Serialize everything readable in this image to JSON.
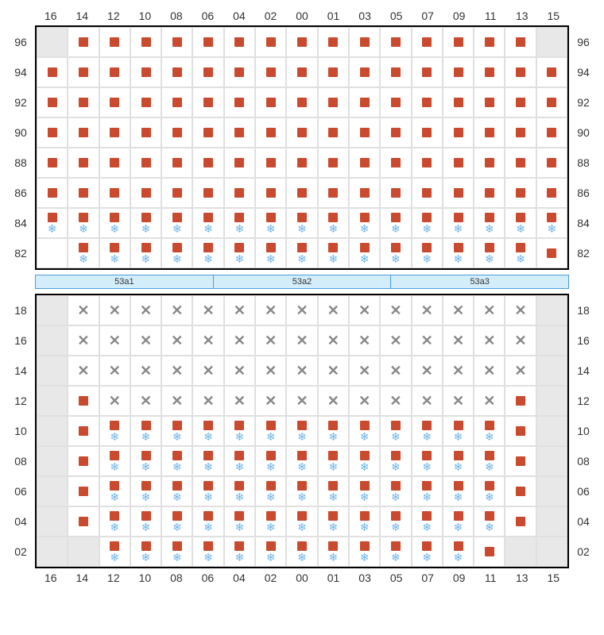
{
  "columns": [
    "16",
    "14",
    "12",
    "10",
    "08",
    "06",
    "04",
    "02",
    "00",
    "01",
    "03",
    "05",
    "07",
    "09",
    "11",
    "13",
    "15"
  ],
  "topBlock": {
    "rows": [
      {
        "label": "96",
        "cells": [
          "g",
          "s",
          "s",
          "s",
          "s",
          "s",
          "s",
          "s",
          "s",
          "s",
          "s",
          "s",
          "s",
          "s",
          "s",
          "s",
          "g"
        ]
      },
      {
        "label": "94",
        "cells": [
          "s",
          "s",
          "s",
          "s",
          "s",
          "s",
          "s",
          "s",
          "s",
          "s",
          "s",
          "s",
          "s",
          "s",
          "s",
          "s",
          "s"
        ]
      },
      {
        "label": "92",
        "cells": [
          "s",
          "s",
          "s",
          "s",
          "s",
          "s",
          "s",
          "s",
          "s",
          "s",
          "s",
          "s",
          "s",
          "s",
          "s",
          "s",
          "s"
        ]
      },
      {
        "label": "90",
        "cells": [
          "s",
          "s",
          "s",
          "s",
          "s",
          "s",
          "s",
          "s",
          "s",
          "s",
          "s",
          "s",
          "s",
          "s",
          "s",
          "s",
          "s"
        ]
      },
      {
        "label": "88",
        "cells": [
          "s",
          "s",
          "s",
          "s",
          "s",
          "s",
          "s",
          "s",
          "s",
          "s",
          "s",
          "s",
          "s",
          "s",
          "s",
          "s",
          "s"
        ]
      },
      {
        "label": "86",
        "cells": [
          "s",
          "s",
          "s",
          "s",
          "s",
          "s",
          "s",
          "s",
          "s",
          "s",
          "s",
          "s",
          "s",
          "s",
          "s",
          "s",
          "s"
        ]
      },
      {
        "label": "84",
        "cells": [
          "sf",
          "sf",
          "sf",
          "sf",
          "sf",
          "sf",
          "sf",
          "sf",
          "sf",
          "sf",
          "sf",
          "sf",
          "sf",
          "sf",
          "sf",
          "sf",
          "sf"
        ]
      },
      {
        "label": "82",
        "cells": [
          "e",
          "sf",
          "sf",
          "sf",
          "sf",
          "sf",
          "sf",
          "sf",
          "sf",
          "sf",
          "sf",
          "sf",
          "sf",
          "sf",
          "sf",
          "sf",
          "s"
        ]
      }
    ]
  },
  "sections": [
    "53a1",
    "53a2",
    "53a3"
  ],
  "bottomBlock": {
    "rows": [
      {
        "label": "18",
        "cells": [
          "g",
          "x",
          "x",
          "x",
          "x",
          "x",
          "x",
          "x",
          "x",
          "x",
          "x",
          "x",
          "x",
          "x",
          "x",
          "x",
          "g"
        ]
      },
      {
        "label": "16",
        "cells": [
          "g",
          "x",
          "x",
          "x",
          "x",
          "x",
          "x",
          "x",
          "x",
          "x",
          "x",
          "x",
          "x",
          "x",
          "x",
          "x",
          "g"
        ]
      },
      {
        "label": "14",
        "cells": [
          "g",
          "x",
          "x",
          "x",
          "x",
          "x",
          "x",
          "x",
          "x",
          "x",
          "x",
          "x",
          "x",
          "x",
          "x",
          "x",
          "g"
        ]
      },
      {
        "label": "12",
        "cells": [
          "g",
          "s",
          "x",
          "x",
          "x",
          "x",
          "x",
          "x",
          "x",
          "x",
          "x",
          "x",
          "x",
          "x",
          "x",
          "s",
          "g"
        ]
      },
      {
        "label": "10",
        "cells": [
          "g",
          "s",
          "sf",
          "sf",
          "sf",
          "sf",
          "sf",
          "sf",
          "sf",
          "sf",
          "sf",
          "sf",
          "sf",
          "sf",
          "sf",
          "s",
          "g"
        ]
      },
      {
        "label": "08",
        "cells": [
          "g",
          "s",
          "sf",
          "sf",
          "sf",
          "sf",
          "sf",
          "sf",
          "sf",
          "sf",
          "sf",
          "sf",
          "sf",
          "sf",
          "sf",
          "s",
          "g"
        ]
      },
      {
        "label": "06",
        "cells": [
          "g",
          "s",
          "sf",
          "sf",
          "sf",
          "sf",
          "sf",
          "sf",
          "sf",
          "sf",
          "sf",
          "sf",
          "sf",
          "sf",
          "sf",
          "s",
          "g"
        ]
      },
      {
        "label": "04",
        "cells": [
          "g",
          "s",
          "sf",
          "sf",
          "sf",
          "sf",
          "sf",
          "sf",
          "sf",
          "sf",
          "sf",
          "sf",
          "sf",
          "sf",
          "sf",
          "s",
          "g"
        ]
      },
      {
        "label": "02",
        "cells": [
          "g",
          "g",
          "sf",
          "sf",
          "sf",
          "sf",
          "sf",
          "sf",
          "sf",
          "sf",
          "sf",
          "sf",
          "sf",
          "sf",
          "s",
          "g",
          "g"
        ]
      }
    ]
  },
  "colors": {
    "seat": "#c94a2f",
    "snow": "#6db4e8",
    "x": "#888888",
    "gray": "#e8e8e8",
    "sectionBg": "#d4edfb",
    "sectionBorder": "#4a9fd8"
  }
}
